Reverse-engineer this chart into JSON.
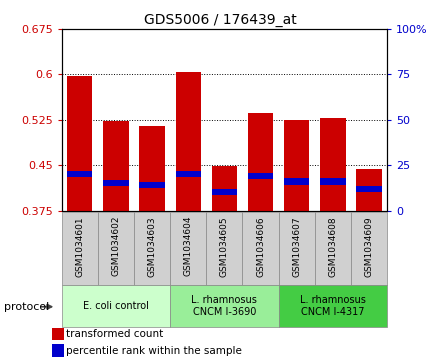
{
  "title": "GDS5006 / 176439_at",
  "samples": [
    "GSM1034601",
    "GSM1034602",
    "GSM1034603",
    "GSM1034604",
    "GSM1034605",
    "GSM1034606",
    "GSM1034607",
    "GSM1034608",
    "GSM1034609"
  ],
  "transformed_count": [
    0.598,
    0.523,
    0.514,
    0.604,
    0.448,
    0.537,
    0.524,
    0.528,
    0.443
  ],
  "percentile_rank": [
    20,
    15,
    14,
    20,
    10,
    19,
    16,
    16,
    12
  ],
  "ylim_left": [
    0.375,
    0.675
  ],
  "ylim_right": [
    0,
    100
  ],
  "yticks_left": [
    0.375,
    0.45,
    0.525,
    0.6,
    0.675
  ],
  "yticks_right": [
    0,
    25,
    50,
    75,
    100
  ],
  "ytick_right_labels": [
    "0",
    "25",
    "50",
    "75",
    "100%"
  ],
  "bar_base": 0.375,
  "bar_width": 0.7,
  "bar_color_red": "#cc0000",
  "bar_color_blue": "#0000cc",
  "groups": [
    {
      "label": "E. coli control",
      "indices": [
        0,
        1,
        2
      ],
      "color": "#ccffcc"
    },
    {
      "label": "L. rhamnosus\nCNCM I-3690",
      "indices": [
        3,
        4,
        5
      ],
      "color": "#99ee99"
    },
    {
      "label": "L. rhamnosus\nCNCM I-4317",
      "indices": [
        6,
        7,
        8
      ],
      "color": "#44cc44"
    }
  ],
  "left_axis_color": "#cc0000",
  "right_axis_color": "#0000cc",
  "grid_color": "#000000",
  "background_color": "#ffffff",
  "xticklabel_bg": "#d0d0d0"
}
